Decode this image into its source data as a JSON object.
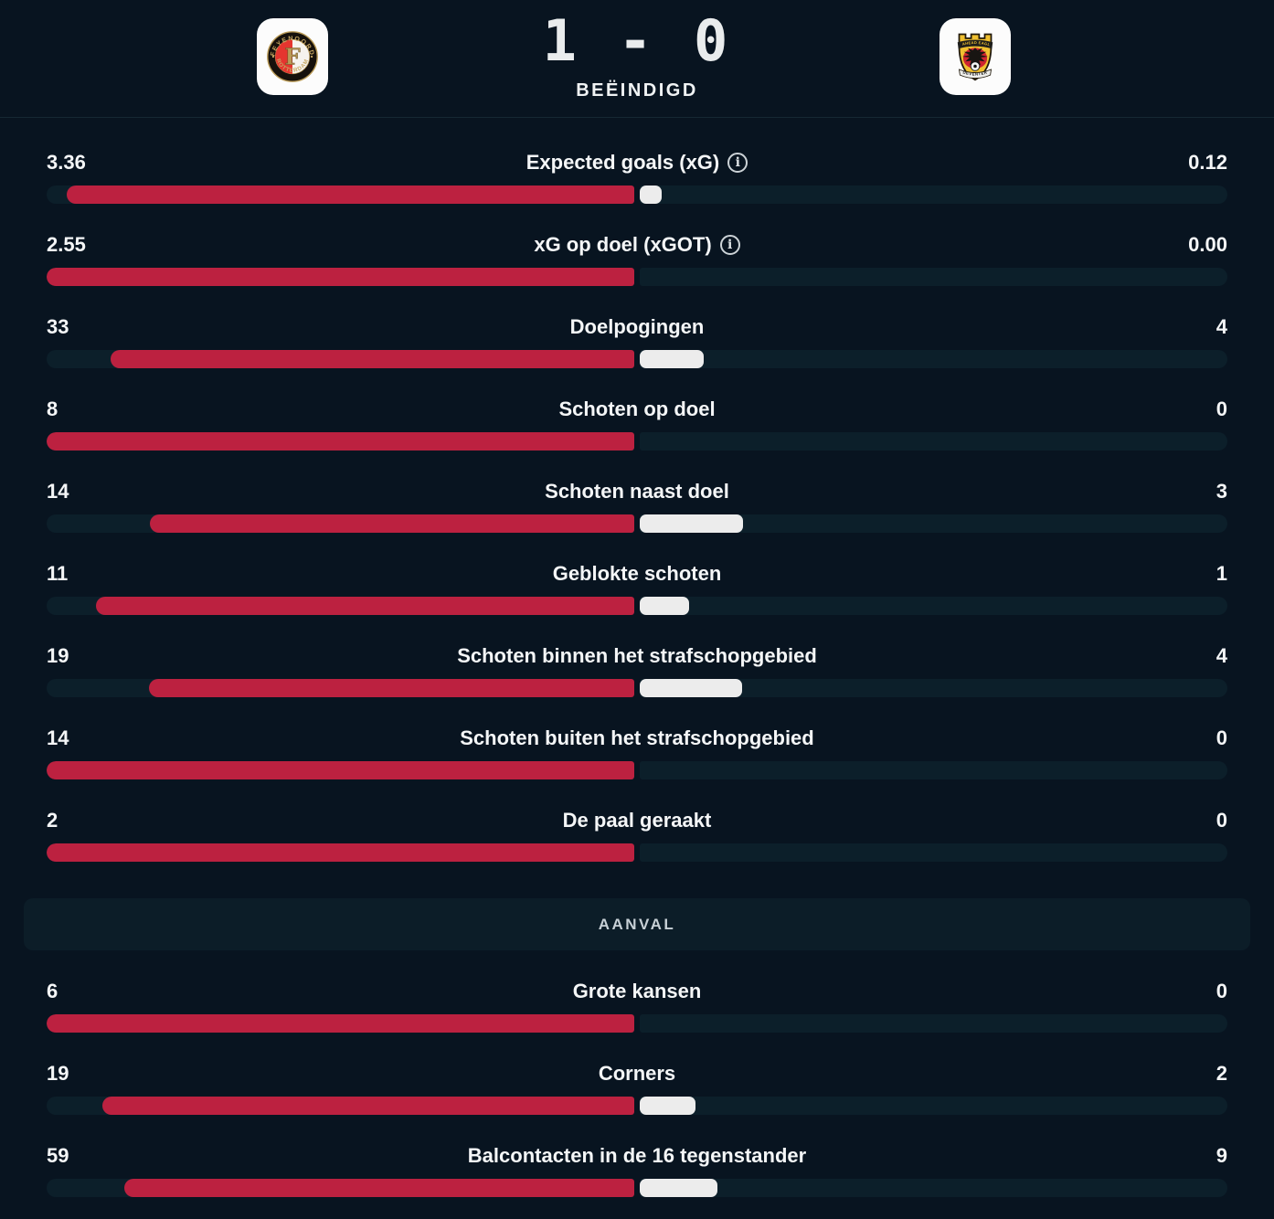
{
  "header": {
    "score": "1 - 0",
    "status": "BEËINDIGD",
    "home_team": {
      "crest_top_text": "FEYENOORD",
      "crest_bottom_text": "ROTTERDAM",
      "crest_letter": "F"
    },
    "away_team": {
      "crest_top_text": "GO AHEAD EAGLES",
      "crest_bottom_text": "DEVENTER"
    }
  },
  "icons": {
    "info_glyph": "i"
  },
  "colors": {
    "background": "#081420",
    "track": "#0c1f2a",
    "panel": "#0c1d28",
    "home": "#bc2140",
    "away": "#ececec"
  },
  "sections": [
    {
      "title": null,
      "rows": [
        {
          "label": "Expected goals (xG)",
          "home": "3.36",
          "away": "0.12",
          "info": true
        },
        {
          "label": "xG op doel (xGOT)",
          "home": "2.55",
          "away": "0.00",
          "info": true
        },
        {
          "label": "Doelpogingen",
          "home": "33",
          "away": "4",
          "info": false
        },
        {
          "label": "Schoten op doel",
          "home": "8",
          "away": "0",
          "info": false
        },
        {
          "label": "Schoten naast doel",
          "home": "14",
          "away": "3",
          "info": false
        },
        {
          "label": "Geblokte schoten",
          "home": "11",
          "away": "1",
          "info": false
        },
        {
          "label": "Schoten binnen het strafschopgebied",
          "home": "19",
          "away": "4",
          "info": false
        },
        {
          "label": "Schoten buiten het strafschopgebied",
          "home": "14",
          "away": "0",
          "info": false
        },
        {
          "label": "De paal geraakt",
          "home": "2",
          "away": "0",
          "info": false
        }
      ]
    },
    {
      "title": "AANVAL",
      "rows": [
        {
          "label": "Grote kansen",
          "home": "6",
          "away": "0",
          "info": false
        },
        {
          "label": "Corners",
          "home": "19",
          "away": "2",
          "info": false
        },
        {
          "label": "Balcontacten in de 16 tegenstander",
          "home": "59",
          "away": "9",
          "info": false
        }
      ]
    }
  ]
}
